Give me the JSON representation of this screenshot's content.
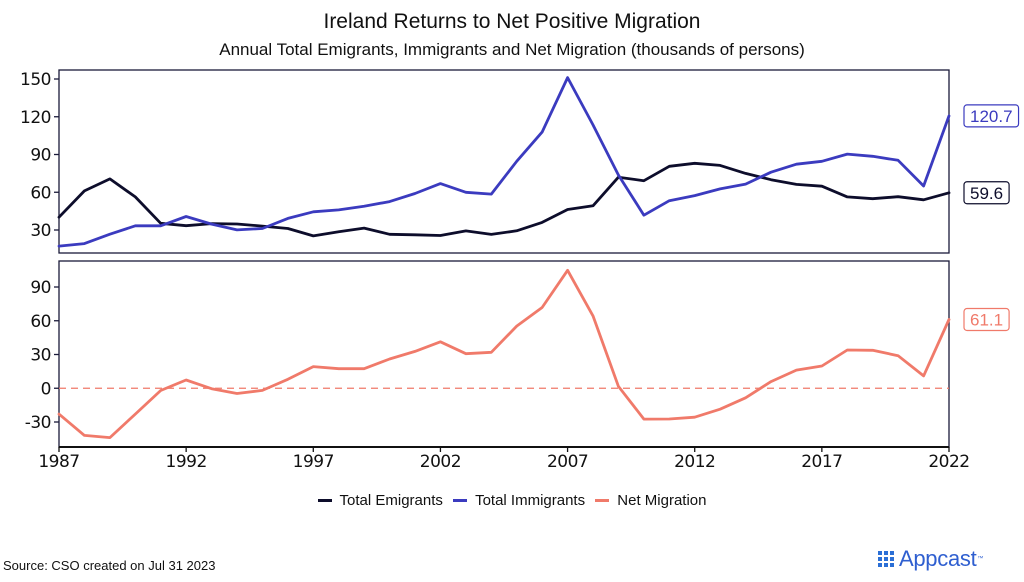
{
  "header": {
    "title": "Ireland Returns to Net Positive Migration",
    "subtitle": "Annual Total Emigrants, Immigrants and Net Migration (thousands of persons)"
  },
  "chart_data": [
    {
      "type": "line",
      "panel": "top",
      "x": [
        1987,
        1988,
        1989,
        1990,
        1991,
        1992,
        1993,
        1994,
        1995,
        1996,
        1997,
        1998,
        1999,
        2000,
        2001,
        2002,
        2003,
        2004,
        2005,
        2006,
        2007,
        2008,
        2009,
        2010,
        2011,
        2012,
        2013,
        2014,
        2015,
        2016,
        2017,
        2018,
        2019,
        2020,
        2021,
        2022
      ],
      "series": [
        {
          "name": "Total Emigrants",
          "color": "#0d0d2b",
          "values": [
            40.2,
            61.1,
            70.6,
            56.3,
            35.3,
            33.4,
            35.1,
            34.8,
            33.1,
            31.2,
            25.3,
            28.6,
            31.5,
            26.6,
            26.2,
            25.6,
            29.3,
            26.5,
            29.4,
            36.0,
            46.3,
            49.2,
            72.0,
            69.2,
            80.6,
            83.0,
            81.3,
            75.0,
            70.0,
            66.2,
            64.8,
            56.3,
            54.9,
            56.5,
            54.0,
            59.6
          ],
          "end_label": "59.6"
        },
        {
          "name": "Total Immigrants",
          "color": "#3b3bbf",
          "values": [
            17.2,
            19.2,
            26.7,
            33.3,
            33.3,
            40.7,
            34.7,
            30.1,
            31.2,
            39.2,
            44.5,
            46.0,
            48.9,
            52.6,
            59.0,
            66.9,
            60.0,
            58.5,
            84.6,
            107.8,
            151.1,
            113.5,
            73.7,
            41.8,
            53.3,
            57.3,
            62.7,
            66.5,
            75.9,
            82.3,
            84.6,
            90.3,
            88.6,
            85.4,
            65.0,
            120.7
          ],
          "end_label": "120.7"
        }
      ],
      "yticks": [
        30,
        60,
        90,
        120,
        150
      ],
      "ytick_labels": [
        "30",
        "60",
        "90",
        "120",
        "150"
      ],
      "ylim": [
        10,
        158
      ],
      "xlim": [
        1987,
        2022
      ],
      "grid": false
    },
    {
      "type": "line",
      "panel": "bottom",
      "x": [
        1987,
        1988,
        1989,
        1990,
        1991,
        1992,
        1993,
        1994,
        1995,
        1996,
        1997,
        1998,
        1999,
        2000,
        2001,
        2002,
        2003,
        2004,
        2005,
        2006,
        2007,
        2008,
        2009,
        2010,
        2011,
        2012,
        2013,
        2014,
        2015,
        2016,
        2017,
        2018,
        2019,
        2020,
        2021,
        2022
      ],
      "series": [
        {
          "name": "Net Migration",
          "color": "#f07a6a",
          "values": [
            -23.0,
            -41.9,
            -43.9,
            -23.0,
            -2.0,
            7.3,
            -0.4,
            -4.7,
            -1.9,
            8.0,
            19.2,
            17.4,
            17.4,
            26.0,
            32.8,
            41.3,
            30.7,
            32.0,
            55.2,
            71.8,
            104.8,
            64.3,
            1.7,
            -27.4,
            -27.3,
            -25.7,
            -18.6,
            -8.5,
            5.9,
            16.1,
            19.8,
            34.0,
            33.7,
            28.9,
            11.0,
            61.1
          ],
          "end_label": "61.1"
        }
      ],
      "reference_line": {
        "y": 0,
        "style": "dashed",
        "color": "#f07a6a"
      },
      "yticks": [
        -30,
        0,
        30,
        60,
        90
      ],
      "ytick_labels": [
        "-30",
        "0",
        "30",
        "60",
        "90"
      ],
      "ylim": [
        -46,
        110
      ],
      "xticks": [
        1987,
        1992,
        1997,
        2002,
        2007,
        2012,
        2017,
        2022
      ],
      "xtick_labels": [
        "1987",
        "1992",
        "1997",
        "2002",
        "2007",
        "2012",
        "2017",
        "2022"
      ],
      "xlim": [
        1987,
        2022
      ],
      "grid": false
    }
  ],
  "legend": {
    "position": "bottom-center",
    "items": [
      {
        "label": "Total Emigrants",
        "color": "#0d0d2b"
      },
      {
        "label": "Total Immigrants",
        "color": "#3b3bbf"
      },
      {
        "label": "Net Migration",
        "color": "#f07a6a"
      }
    ]
  },
  "footer": {
    "source": "Source: CSO created on Jul 31 2023",
    "brand": "Appcast",
    "brand_color": "#2f5fd0"
  }
}
